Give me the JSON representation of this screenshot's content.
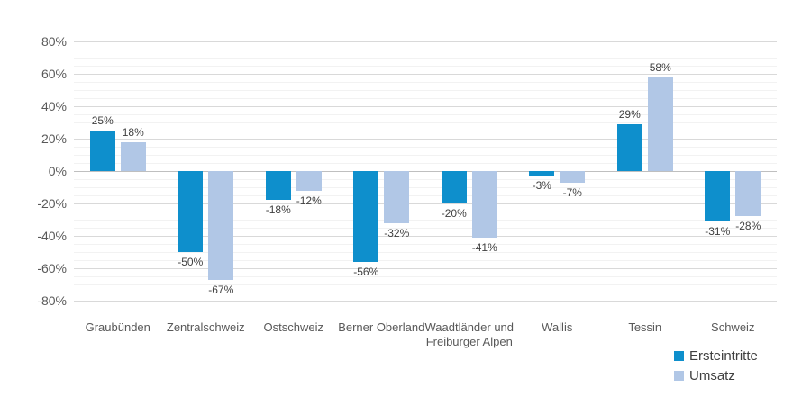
{
  "chart_data": {
    "type": "bar",
    "categories": [
      "Graubünden",
      "Zentralschweiz",
      "Ostschweiz",
      "Berner Oberland",
      "Waadtländer und Freiburger Alpen",
      "Wallis",
      "Tessin",
      "Schweiz"
    ],
    "series": [
      {
        "name": "Ersteintritte",
        "color": "#0e8fcc",
        "values": [
          25,
          -50,
          -18,
          -56,
          -20,
          -3,
          29,
          -31
        ]
      },
      {
        "name": "Umsatz",
        "color": "#b1c7e6",
        "values": [
          18,
          -67,
          -12,
          -32,
          -41,
          -7,
          58,
          -28
        ]
      }
    ],
    "value_suffix": "%",
    "title": "",
    "xlabel": "",
    "ylabel": "",
    "ylim": [
      -80,
      80
    ],
    "y_major_ticks": [
      80,
      60,
      40,
      20,
      0,
      -20,
      -40,
      -60,
      -80
    ],
    "y_tick_labels": [
      "80%",
      "60%",
      "40%",
      "20%",
      "0%",
      "-20%",
      "-40%",
      "-60%",
      "-80%"
    ],
    "y_minor_step": 5,
    "grid": "on",
    "legend_position": "bottom-right",
    "legend_entries": [
      "Ersteintritte",
      "Umsatz"
    ]
  },
  "colors": {
    "series_dark": "#0e8fcc",
    "series_light": "#b1c7e6",
    "grid_major": "#d9d9d9",
    "grid_minor": "#f2f2f2",
    "grid_zero": "#bfbfbf",
    "axis_text": "#595959",
    "data_label_text": "#404040",
    "legend_text": "#404040",
    "background": "#ffffff"
  }
}
